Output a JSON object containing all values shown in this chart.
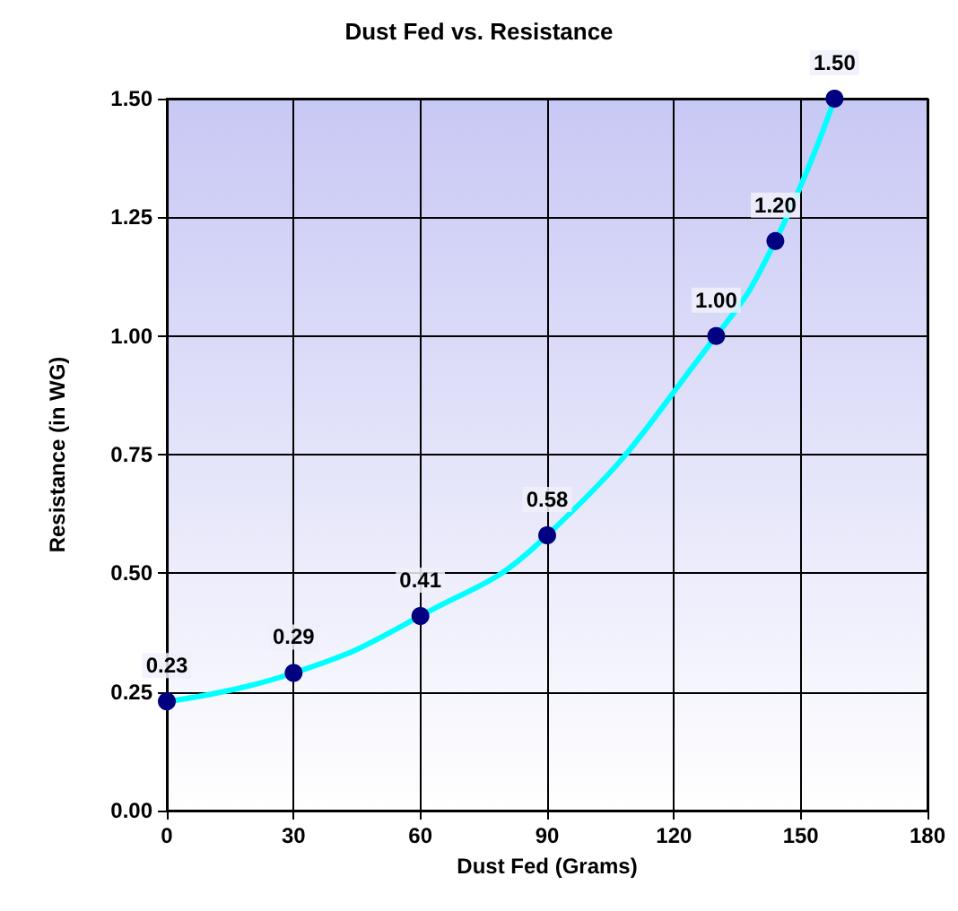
{
  "chart_data": {
    "type": "line",
    "title": "Dust Fed vs. Resistance",
    "xlabel": "Dust Fed (Grams)",
    "ylabel": "Resistance (in WG)",
    "x": [
      0,
      30,
      60,
      90,
      130,
      144,
      158
    ],
    "series": [
      {
        "color": "#00ffff",
        "values": [
          0.23,
          0.29,
          0.41,
          0.58,
          1.0,
          1.2,
          1.5
        ],
        "value_labels": [
          "0.23",
          "0.29",
          "0.41",
          "0.58",
          "1.00",
          "1.20",
          "1.50"
        ]
      }
    ],
    "xlim": [
      0,
      180
    ],
    "xticks": [
      0,
      30,
      60,
      90,
      120,
      150,
      180
    ],
    "ylim": [
      0,
      1.5
    ],
    "yticks": [
      {
        "value": 0,
        "label": "0.00"
      },
      {
        "value": 0.25,
        "label": "0.25"
      },
      {
        "value": 0.5,
        "label": "0.50"
      },
      {
        "value": 0.75,
        "label": "0.75"
      },
      {
        "value": 1,
        "label": "1.00"
      },
      {
        "value": 1.25,
        "label": "1.25"
      },
      {
        "value": 1.5,
        "label": "1.50"
      }
    ],
    "grid": true,
    "marker": "circle",
    "line_style": "solid"
  }
}
